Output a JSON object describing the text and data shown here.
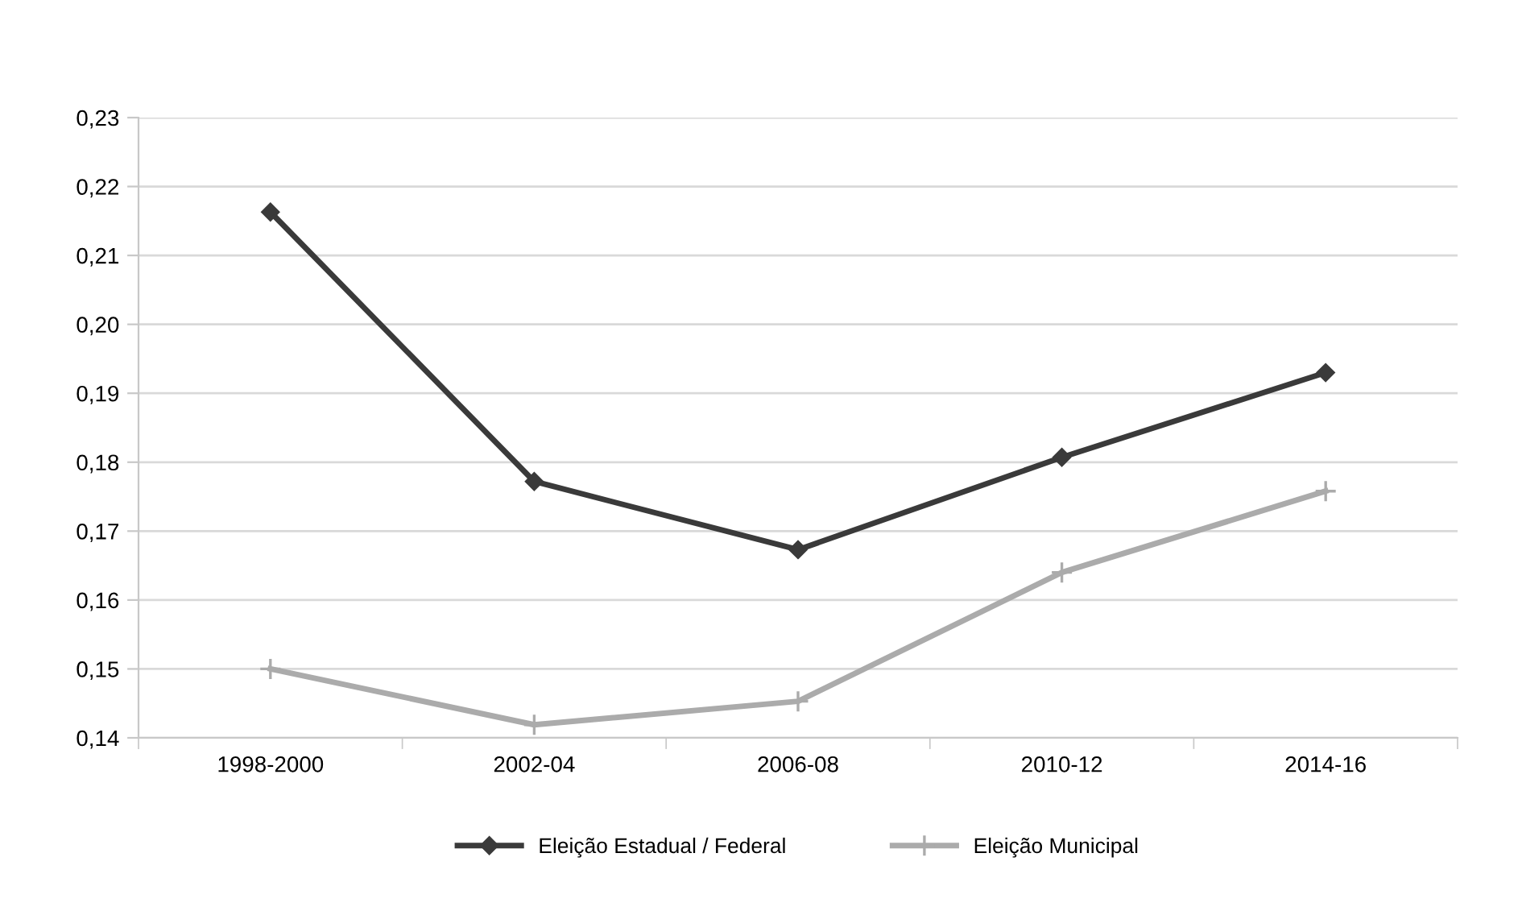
{
  "chart_data": {
    "type": "line",
    "categories": [
      "1998-2000",
      "2002-04",
      "2006-08",
      "2010-12",
      "2014-16"
    ],
    "series": [
      {
        "name": "Eleição Estadual / Federal",
        "color": "#3a3a3a",
        "marker": "diamond",
        "values": [
          0.2163,
          0.1772,
          0.1673,
          0.1807,
          0.193
        ]
      },
      {
        "name": "Eleição Municipal",
        "color": "#ababab",
        "marker": "cross",
        "values": [
          0.15,
          0.1419,
          0.1453,
          0.164,
          0.1758
        ]
      }
    ],
    "ylim": [
      0.14,
      0.23
    ],
    "yticks": [
      {
        "value": 0.14,
        "label": "0,14"
      },
      {
        "value": 0.15,
        "label": "0,15"
      },
      {
        "value": 0.16,
        "label": "0,16"
      },
      {
        "value": 0.17,
        "label": "0,17"
      },
      {
        "value": 0.18,
        "label": "0,18"
      },
      {
        "value": 0.19,
        "label": "0,19"
      },
      {
        "value": 0.2,
        "label": "0,20"
      },
      {
        "value": 0.21,
        "label": "0,21"
      },
      {
        "value": 0.22,
        "label": "0,22"
      },
      {
        "value": 0.23,
        "label": "0,23"
      }
    ],
    "grid": "y",
    "legend": "bottom",
    "line_style": "solid"
  }
}
